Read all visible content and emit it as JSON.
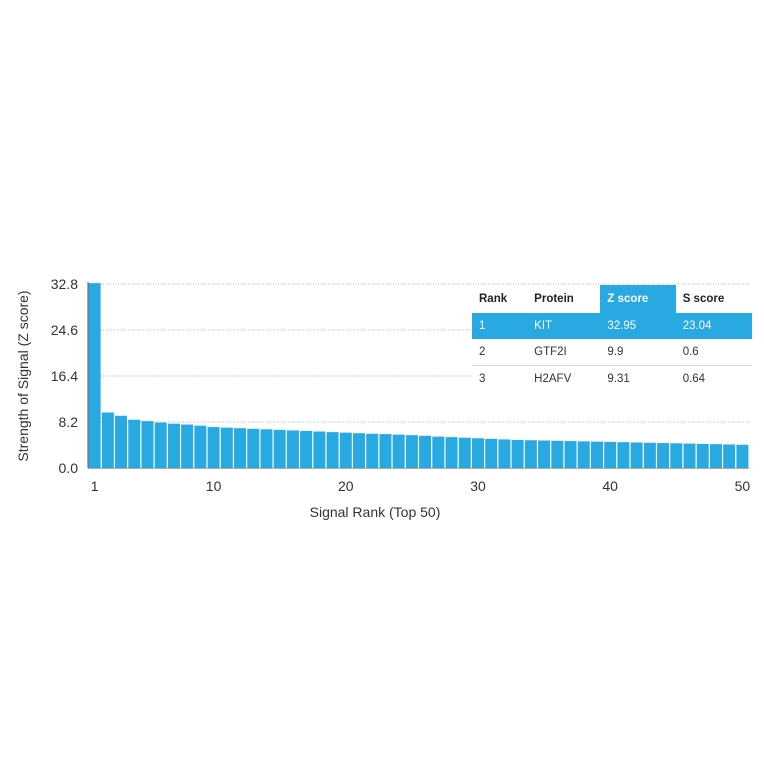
{
  "chart_data": {
    "type": "bar",
    "ylabel": "Strength of Signal (Z score)",
    "xlabel": "Signal Rank (Top 50)",
    "yticks": [
      "0.0",
      "8.2",
      "16.4",
      "24.6",
      "32.8"
    ],
    "ylim": [
      0,
      32.8
    ],
    "xticks": [
      "1",
      "10",
      "20",
      "30",
      "40",
      "50"
    ],
    "xtick_values": [
      1,
      10,
      20,
      30,
      40,
      50
    ],
    "grid": "horizontal dotted",
    "bar_color": "#29a9e1",
    "values": [
      32.95,
      9.9,
      9.31,
      8.6,
      8.35,
      8.1,
      7.9,
      7.75,
      7.55,
      7.3,
      7.2,
      7.1,
      7.0,
      6.9,
      6.8,
      6.7,
      6.6,
      6.5,
      6.4,
      6.3,
      6.2,
      6.1,
      6.05,
      5.95,
      5.85,
      5.75,
      5.6,
      5.5,
      5.4,
      5.3,
      5.2,
      5.1,
      5.0,
      4.95,
      4.9,
      4.85,
      4.8,
      4.75,
      4.7,
      4.65,
      4.6,
      4.55,
      4.5,
      4.45,
      4.4,
      4.35,
      4.3,
      4.25,
      4.2,
      4.15
    ]
  },
  "table": {
    "headers": [
      "Rank",
      "Protein",
      "Z score",
      "S score"
    ],
    "highlight_color": "#29a9e1",
    "rows": [
      [
        "1",
        "KIT",
        "32.95",
        "23.04"
      ],
      [
        "2",
        "GTF2I",
        "9.9",
        "0.6"
      ],
      [
        "3",
        "H2AFV",
        "9.31",
        "0.64"
      ]
    ]
  }
}
